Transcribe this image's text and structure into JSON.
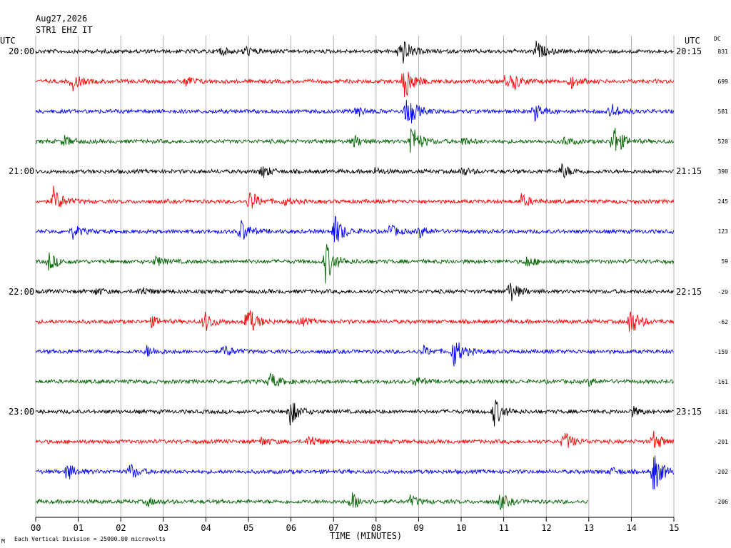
{
  "header": {
    "date": "Aug27,2026",
    "station": "STR1 EHZ IT"
  },
  "labels": {
    "utc_left": "UTC",
    "utc_right": "UTC",
    "dc": "DC",
    "xlabel": "TIME (MINUTES)",
    "footnote": "Each Vertical Division = 25000.00 microvolts",
    "footnote_mark": "M"
  },
  "chart_data": {
    "type": "line",
    "title": "",
    "xlabel": "TIME (MINUTES)",
    "ylabel": "",
    "x_ticks": [
      "00",
      "01",
      "02",
      "03",
      "04",
      "05",
      "06",
      "07",
      "08",
      "09",
      "10",
      "11",
      "12",
      "13",
      "14",
      "15"
    ],
    "xlim": [
      0,
      15
    ],
    "grid": "vertical lines at each minute",
    "scale": "Each Vertical Division = 25000.00 microvolts",
    "colors": [
      "#000000",
      "#ff0000",
      "#0000ff",
      "#006400"
    ],
    "left_time_labels": [
      {
        "trace": 0,
        "text": "20:00"
      },
      {
        "trace": 4,
        "text": "21:00"
      },
      {
        "trace": 8,
        "text": "22:00"
      },
      {
        "trace": 12,
        "text": "23:00"
      }
    ],
    "right_time_labels": [
      {
        "trace": 0,
        "text": "20:15"
      },
      {
        "trace": 4,
        "text": "21:15"
      },
      {
        "trace": 8,
        "text": "22:15"
      },
      {
        "trace": 12,
        "text": "23:15"
      }
    ],
    "dc_values": [
      "831",
      "699",
      "581",
      "520",
      "390",
      "245",
      "123",
      "59",
      "-29",
      "-62",
      "-159",
      "-161",
      "-181",
      "-201",
      "-202",
      "-206"
    ],
    "traces": [
      {
        "color": "#000000",
        "end_minute": 15,
        "events": [
          [
            8.55,
            2.6
          ],
          [
            11.75,
            1.4
          ],
          [
            4.9,
            0.8
          ],
          [
            4.3,
            0.6
          ]
        ]
      },
      {
        "color": "#ff0000",
        "end_minute": 15,
        "events": [
          [
            8.65,
            3.0
          ],
          [
            0.85,
            1.3
          ],
          [
            3.5,
            0.9
          ],
          [
            11.2,
            1.0
          ],
          [
            12.55,
            1.0
          ],
          [
            11.0,
            0.8
          ]
        ]
      },
      {
        "color": "#0000ff",
        "end_minute": 15,
        "events": [
          [
            8.7,
            3.0
          ],
          [
            11.7,
            1.4
          ],
          [
            13.5,
            1.3
          ],
          [
            7.5,
            0.9
          ]
        ]
      },
      {
        "color": "#006400",
        "end_minute": 15,
        "events": [
          [
            8.8,
            2.8
          ],
          [
            13.55,
            2.8
          ],
          [
            0.65,
            0.8
          ],
          [
            7.45,
            0.9
          ],
          [
            12.4,
            0.6
          ],
          [
            10.0,
            0.6
          ]
        ]
      },
      {
        "color": "#000000",
        "end_minute": 15,
        "events": [
          [
            5.3,
            1.0
          ],
          [
            12.35,
            1.1
          ],
          [
            10.0,
            0.6
          ],
          [
            7.95,
            0.5
          ]
        ]
      },
      {
        "color": "#ff0000",
        "end_minute": 15,
        "events": [
          [
            0.4,
            2.2
          ],
          [
            5.0,
            1.8
          ],
          [
            11.4,
            1.0
          ],
          [
            5.8,
            0.6
          ]
        ]
      },
      {
        "color": "#0000ff",
        "end_minute": 15,
        "events": [
          [
            4.8,
            1.8
          ],
          [
            7.0,
            2.6
          ],
          [
            0.85,
            1.0
          ],
          [
            8.3,
            1.0
          ],
          [
            9.0,
            0.9
          ]
        ]
      },
      {
        "color": "#006400",
        "end_minute": 15,
        "events": [
          [
            6.8,
            3.2
          ],
          [
            0.3,
            1.3
          ],
          [
            2.8,
            0.8
          ],
          [
            11.5,
            0.9
          ]
        ]
      },
      {
        "color": "#000000",
        "end_minute": 15,
        "events": [
          [
            11.1,
            1.9
          ],
          [
            2.45,
            0.7
          ],
          [
            1.4,
            0.5
          ]
        ]
      },
      {
        "color": "#ff0000",
        "end_minute": 15,
        "events": [
          [
            4.95,
            2.5
          ],
          [
            3.95,
            1.6
          ],
          [
            13.95,
            2.3
          ],
          [
            2.7,
            0.7
          ],
          [
            6.2,
            0.6
          ]
        ]
      },
      {
        "color": "#0000ff",
        "end_minute": 15,
        "events": [
          [
            9.8,
            2.5
          ],
          [
            4.4,
            1.0
          ],
          [
            2.6,
            0.8
          ],
          [
            9.1,
            0.7
          ]
        ]
      },
      {
        "color": "#006400",
        "end_minute": 15,
        "events": [
          [
            5.5,
            1.3
          ],
          [
            8.9,
            0.7
          ],
          [
            13.0,
            0.5
          ]
        ]
      },
      {
        "color": "#000000",
        "end_minute": 15,
        "events": [
          [
            5.95,
            2.2
          ],
          [
            10.75,
            2.3
          ],
          [
            14.0,
            0.7
          ]
        ]
      },
      {
        "color": "#ff0000",
        "end_minute": 15,
        "events": [
          [
            12.4,
            1.6
          ],
          [
            6.4,
            1.0
          ],
          [
            14.5,
            1.5
          ],
          [
            5.3,
            0.6
          ]
        ]
      },
      {
        "color": "#0000ff",
        "end_minute": 15,
        "events": [
          [
            14.5,
            3.3
          ],
          [
            0.7,
            1.4
          ],
          [
            2.2,
            1.2
          ],
          [
            13.5,
            0.6
          ]
        ]
      },
      {
        "color": "#006400",
        "end_minute": 13,
        "events": [
          [
            7.4,
            1.5
          ],
          [
            10.9,
            1.2
          ],
          [
            8.8,
            0.8
          ],
          [
            2.6,
            0.6
          ]
        ]
      }
    ]
  }
}
